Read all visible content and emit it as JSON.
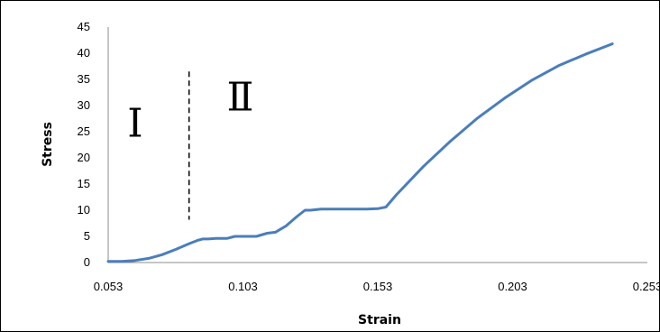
{
  "chart_data": {
    "type": "line",
    "title": "",
    "xlabel": "Strain",
    "ylabel": "Stress",
    "xlim": [
      0.053,
      0.253
    ],
    "ylim": [
      0,
      45
    ],
    "x_ticks": [
      "0.053",
      "0.103",
      "0.153",
      "0.203",
      "0.253"
    ],
    "y_ticks": [
      "0",
      "5",
      "10",
      "15",
      "20",
      "25",
      "30",
      "35",
      "40",
      "45"
    ],
    "grid": false,
    "legend": "none",
    "line_color": "#4a7ebb",
    "series": [
      {
        "x": [
          0.053,
          0.058,
          0.063,
          0.068,
          0.073,
          0.078,
          0.083,
          0.086,
          0.088,
          0.09,
          0.093,
          0.097,
          0.1,
          0.104,
          0.108,
          0.112,
          0.115,
          0.119,
          0.123,
          0.126,
          0.128,
          0.132,
          0.137,
          0.143,
          0.149,
          0.153,
          0.156,
          0.16,
          0.17,
          0.18,
          0.19,
          0.2,
          0.21,
          0.22,
          0.23,
          0.24
        ],
        "y": [
          0.2,
          0.2,
          0.4,
          0.8,
          1.5,
          2.5,
          3.6,
          4.2,
          4.5,
          4.5,
          4.6,
          4.6,
          5.0,
          5.0,
          5.0,
          5.6,
          5.8,
          7.0,
          8.8,
          10.0,
          10.0,
          10.2,
          10.2,
          10.2,
          10.2,
          10.3,
          10.6,
          13.0,
          18.4,
          23.2,
          27.6,
          31.4,
          34.8,
          37.6,
          39.8,
          41.8
        ]
      }
    ],
    "annotations": [
      {
        "type": "dashed-line",
        "x": 0.083,
        "y_range": [
          8.2,
          36.5
        ]
      },
      {
        "type": "text",
        "text": "Ⅰ",
        "x": 0.063,
        "y": 26
      },
      {
        "type": "text",
        "text": "Ⅱ",
        "x": 0.102,
        "y": 31
      }
    ]
  }
}
